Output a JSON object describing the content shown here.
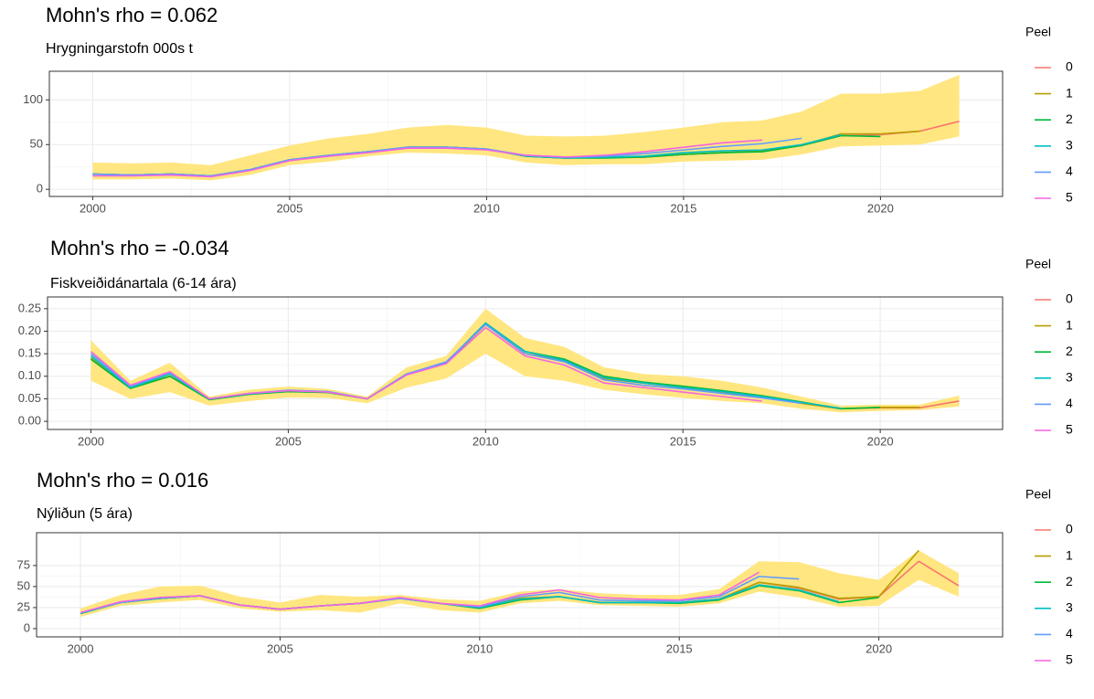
{
  "chart_data": [
    {
      "type": "line",
      "title": "Mohn's rho = 0.062",
      "subtitle": "Hrygningarstofn 000s t",
      "legend_title": "Peel",
      "x": [
        2000,
        2001,
        2002,
        2003,
        2004,
        2005,
        2006,
        2007,
        2008,
        2009,
        2010,
        2011,
        2012,
        2013,
        2014,
        2015,
        2016,
        2017,
        2018,
        2019,
        2020,
        2021,
        2022
      ],
      "xlim": [
        1998.9,
        2023.1
      ],
      "xticks": [
        2000,
        2005,
        2010,
        2015,
        2020
      ],
      "ylim": [
        -8,
        132
      ],
      "yticks": [
        0,
        50,
        100
      ],
      "grid": true,
      "band": {
        "color": "#FFE680",
        "upper": [
          30,
          29,
          30,
          27,
          38,
          49,
          57,
          62,
          69,
          72,
          69,
          60,
          59,
          60,
          64,
          69,
          75,
          77,
          87,
          107,
          107,
          110,
          128
        ],
        "lower": [
          11,
          11,
          12,
          10,
          16,
          27,
          31,
          37,
          41,
          40,
          38,
          30,
          27,
          28,
          28,
          31,
          32,
          33,
          39,
          48,
          49,
          50,
          59
        ]
      },
      "series": [
        {
          "name": "0",
          "color": "#F8766D",
          "values": [
            17,
            16,
            17,
            15,
            22,
            33,
            38,
            42,
            47,
            47,
            45,
            37,
            35,
            36,
            36,
            39,
            41,
            43,
            49,
            60,
            61,
            65,
            76
          ]
        },
        {
          "name": "1",
          "color": "#B79F00",
          "values": [
            17,
            16,
            17,
            15,
            22,
            33,
            38,
            42,
            47,
            47,
            45,
            37,
            35,
            36,
            36,
            39,
            41,
            43,
            49,
            62,
            62,
            65,
            null
          ]
        },
        {
          "name": "2",
          "color": "#00BA38",
          "values": [
            17,
            16,
            17,
            15,
            22,
            33,
            38,
            42,
            47,
            47,
            45,
            37,
            35,
            35,
            36,
            39,
            41,
            42,
            49,
            60,
            59,
            null,
            null
          ]
        },
        {
          "name": "3",
          "color": "#00BFC4",
          "values": [
            17,
            16,
            17,
            15,
            22,
            33,
            38,
            42,
            47,
            47,
            45,
            37,
            35,
            36,
            37,
            41,
            43,
            44,
            50,
            61,
            null,
            null,
            null
          ]
        },
        {
          "name": "4",
          "color": "#619CFF",
          "values": [
            17,
            16,
            17,
            15,
            22,
            33,
            38,
            42,
            47,
            47,
            45,
            38,
            36,
            37,
            40,
            44,
            48,
            51,
            57,
            null,
            null,
            null,
            null
          ]
        },
        {
          "name": "5",
          "color": "#F564E3",
          "values": [
            15,
            15,
            16,
            14,
            21,
            32,
            37,
            41,
            46,
            46,
            44,
            38,
            36,
            38,
            42,
            47,
            52,
            55,
            null,
            null,
            null,
            null,
            null
          ]
        }
      ]
    },
    {
      "type": "line",
      "title": "Mohn's rho = -0.034",
      "subtitle": "Fiskveiðidánartala (6-14 ára)",
      "legend_title": "Peel",
      "x": [
        2000,
        2001,
        2002,
        2003,
        2004,
        2005,
        2006,
        2007,
        2008,
        2009,
        2010,
        2011,
        2012,
        2013,
        2014,
        2015,
        2016,
        2017,
        2018,
        2019,
        2020,
        2021,
        2022
      ],
      "xlim": [
        1998.9,
        2023.1
      ],
      "xticks": [
        2000,
        2005,
        2010,
        2015,
        2020
      ],
      "ylim": [
        -0.018,
        0.276
      ],
      "yticks": [
        {
          "value": 0,
          "label": "0.00"
        },
        0.05,
        {
          "value": 0.1,
          "label": "0.10"
        },
        0.15,
        {
          "value": 0.2,
          "label": "0.20"
        },
        0.25
      ],
      "grid": true,
      "band": {
        "color": "#FFE680",
        "upper": [
          0.18,
          0.09,
          0.13,
          0.055,
          0.07,
          0.077,
          0.072,
          0.055,
          0.12,
          0.145,
          0.25,
          0.185,
          0.165,
          0.12,
          0.105,
          0.1,
          0.09,
          0.075,
          0.055,
          0.035,
          0.037,
          0.037,
          0.057
        ],
        "lower": [
          0.09,
          0.05,
          0.065,
          0.035,
          0.045,
          0.053,
          0.052,
          0.04,
          0.075,
          0.095,
          0.15,
          0.1,
          0.09,
          0.07,
          0.06,
          0.052,
          0.045,
          0.04,
          0.028,
          0.02,
          0.023,
          0.025,
          0.033
        ]
      },
      "series": [
        {
          "name": "0",
          "color": "#F8766D",
          "values": [
            0.14,
            0.075,
            0.1,
            0.05,
            0.06,
            0.067,
            0.065,
            0.05,
            0.105,
            0.13,
            0.215,
            0.15,
            0.135,
            0.095,
            0.085,
            0.075,
            0.065,
            0.055,
            0.04,
            0.028,
            0.03,
            0.03,
            0.045
          ]
        },
        {
          "name": "1",
          "color": "#B79F00",
          "values": [
            0.14,
            0.075,
            0.1,
            0.05,
            0.06,
            0.067,
            0.065,
            0.05,
            0.105,
            0.13,
            0.215,
            0.15,
            0.135,
            0.095,
            0.085,
            0.075,
            0.065,
            0.055,
            0.04,
            0.028,
            0.031,
            0.031,
            null
          ]
        },
        {
          "name": "2",
          "color": "#00BA38",
          "values": [
            0.138,
            0.073,
            0.1,
            0.048,
            0.06,
            0.066,
            0.064,
            0.05,
            0.105,
            0.13,
            0.218,
            0.155,
            0.138,
            0.1,
            0.087,
            0.078,
            0.068,
            0.057,
            0.043,
            0.028,
            0.031,
            null,
            null
          ]
        },
        {
          "name": "3",
          "color": "#00BFC4",
          "values": [
            0.145,
            0.075,
            0.105,
            0.05,
            0.061,
            0.068,
            0.066,
            0.05,
            0.105,
            0.13,
            0.218,
            0.155,
            0.135,
            0.097,
            0.085,
            0.075,
            0.066,
            0.055,
            0.042,
            0.029,
            null,
            null,
            null
          ]
        },
        {
          "name": "4",
          "color": "#619CFF",
          "values": [
            0.15,
            0.078,
            0.108,
            0.05,
            0.062,
            0.069,
            0.066,
            0.05,
            0.105,
            0.132,
            0.215,
            0.15,
            0.132,
            0.092,
            0.08,
            0.072,
            0.062,
            0.052,
            0.04,
            null,
            null,
            null,
            null
          ]
        },
        {
          "name": "5",
          "color": "#F564E3",
          "values": [
            0.155,
            0.08,
            0.11,
            0.05,
            0.062,
            0.068,
            0.065,
            0.05,
            0.103,
            0.128,
            0.208,
            0.145,
            0.125,
            0.085,
            0.075,
            0.065,
            0.055,
            0.045,
            null,
            null,
            null,
            null,
            null
          ]
        }
      ]
    },
    {
      "type": "line",
      "title": "Mohn's rho = 0.016",
      "subtitle": "Nýliðun (5 ára)",
      "legend_title": "Peel",
      "x": [
        2000,
        2001,
        2002,
        2003,
        2004,
        2005,
        2006,
        2007,
        2008,
        2009,
        2010,
        2011,
        2012,
        2013,
        2014,
        2015,
        2016,
        2017,
        2018,
        2019,
        2020,
        2021,
        2022
      ],
      "xlim": [
        1998.9,
        2023.1
      ],
      "xticks": [
        2000,
        2005,
        2010,
        2015,
        2020
      ],
      "ylim": [
        -9.8,
        114
      ],
      "yticks": [
        0,
        25,
        50,
        75
      ],
      "grid": true,
      "band": {
        "color": "#FFE680",
        "upper": [
          24,
          40,
          50,
          51,
          38,
          31,
          40,
          38,
          40,
          35,
          33,
          44,
          47,
          42,
          40,
          40,
          47,
          80,
          79,
          66,
          58,
          93,
          66
        ],
        "lower": [
          14,
          27,
          31,
          34,
          24,
          20,
          22,
          19,
          30,
          22,
          19,
          30,
          33,
          28,
          27,
          26,
          30,
          44,
          37,
          26,
          27,
          58,
          38
        ]
      },
      "series": [
        {
          "name": "0",
          "color": "#F8766D",
          "values": [
            18,
            31,
            36,
            39,
            28,
            23,
            27,
            30,
            36,
            30,
            25,
            36,
            38,
            31,
            31,
            31,
            35,
            55,
            48,
            35,
            38,
            80,
            51
          ]
        },
        {
          "name": "1",
          "color": "#B79F00",
          "values": [
            18,
            31,
            36,
            39,
            28,
            23,
            27,
            30,
            36,
            30,
            25,
            36,
            38,
            31,
            31,
            31,
            35,
            55,
            49,
            36,
            38,
            93,
            null
          ]
        },
        {
          "name": "2",
          "color": "#00BA38",
          "values": [
            18,
            31,
            36,
            39,
            28,
            23,
            27,
            30,
            36,
            30,
            24,
            34,
            38,
            31,
            31,
            30,
            34,
            51,
            45,
            31,
            37,
            null,
            null
          ]
        },
        {
          "name": "3",
          "color": "#00BFC4",
          "values": [
            18,
            31,
            36,
            39,
            28,
            23,
            27,
            30,
            36,
            30,
            25,
            35,
            38,
            31,
            31,
            31,
            35,
            52,
            46,
            32,
            null,
            null,
            null
          ]
        },
        {
          "name": "4",
          "color": "#619CFF",
          "values": [
            19,
            31,
            37,
            39,
            28,
            23,
            27,
            30,
            36,
            30,
            26,
            38,
            43,
            34,
            33,
            33,
            38,
            62,
            59,
            null,
            null,
            null,
            null
          ]
        },
        {
          "name": "5",
          "color": "#F564E3",
          "values": [
            19,
            32,
            37,
            39,
            28,
            23,
            27,
            30,
            37,
            30,
            27,
            40,
            46,
            37,
            35,
            34,
            40,
            67,
            null,
            null,
            null,
            null,
            null
          ]
        }
      ]
    }
  ]
}
